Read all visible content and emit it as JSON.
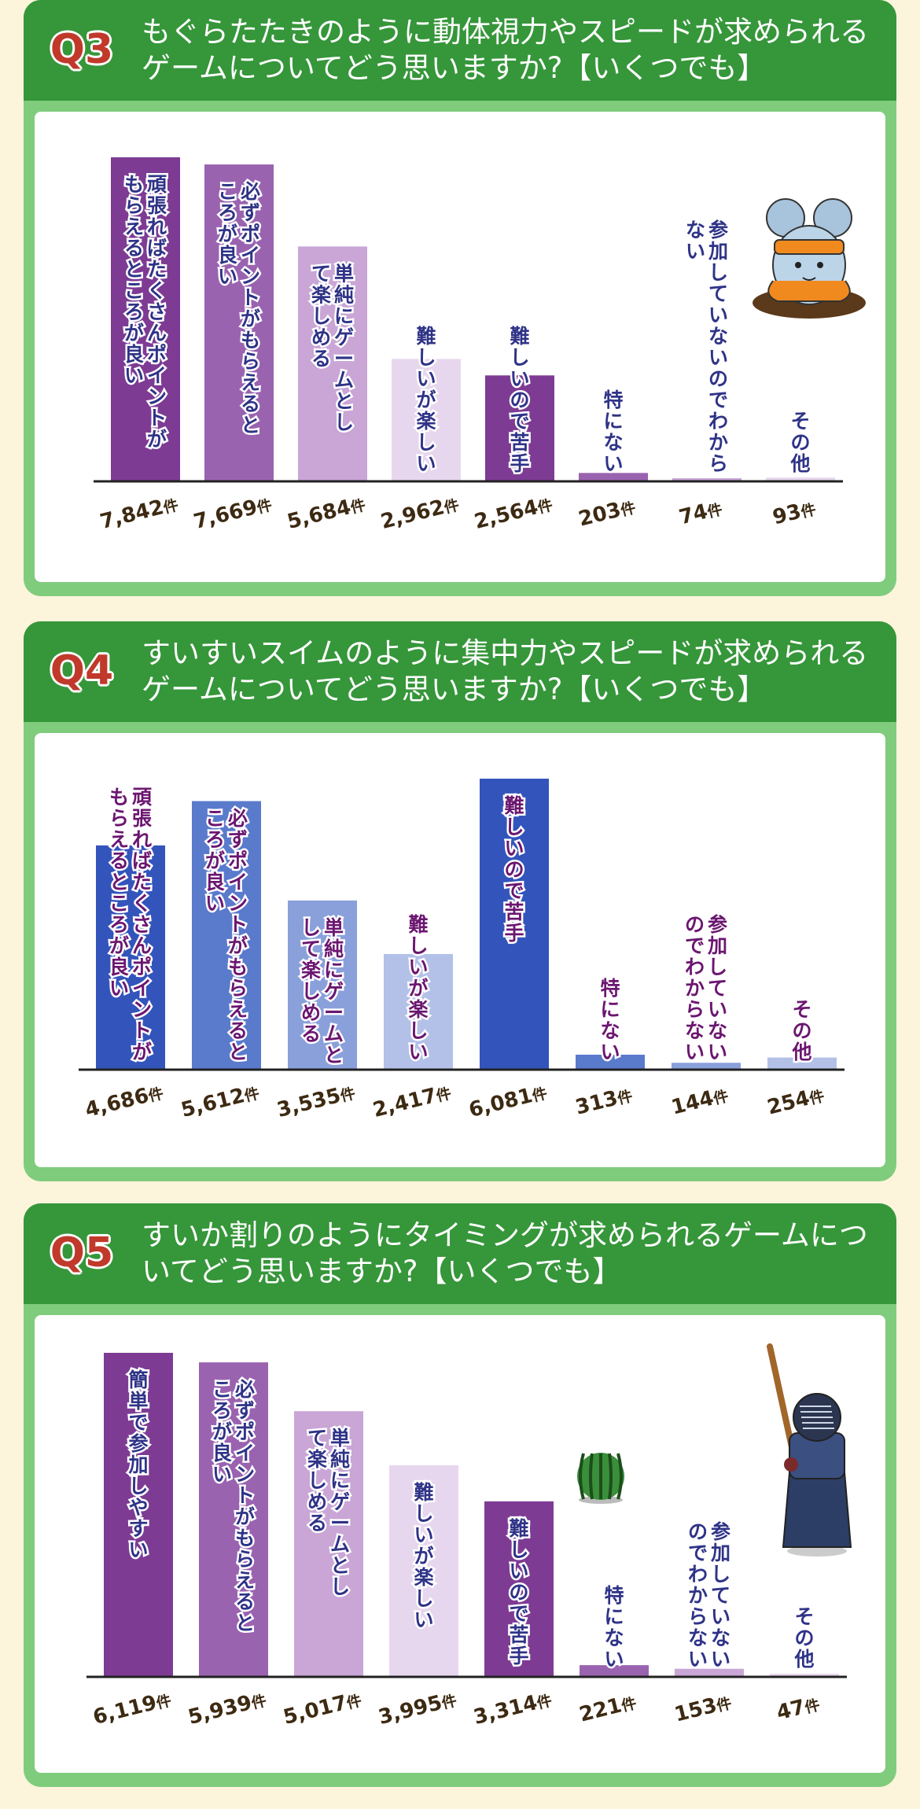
{
  "unit_suffix": "件",
  "chart_data": [
    {
      "type": "bar",
      "question_no": "Q3",
      "question": "もぐらたたきのように動体視力やスピードが求められるゲームについてどう思いますか?【いくつでも】",
      "categories": [
        "頑張ればたくさんポイントがもらえるところが良い",
        "必ずポイントがもらえるところが良い",
        "単純にゲームとして楽しめる",
        "難しいが楽しい",
        "難しいので苦手",
        "特にない",
        "参加していないのでわからない",
        "その他"
      ],
      "values": [
        7842,
        7669,
        5684,
        2962,
        2564,
        203,
        74,
        93
      ],
      "value_labels": [
        "7,842",
        "7,669",
        "5,684",
        "2,962",
        "2,564",
        "203",
        "74",
        "93"
      ],
      "bar_colors": [
        "#7e3b94",
        "#9a63b0",
        "#c9a6d6",
        "#e7d7ee",
        "#7e3b94",
        "#9a63b0",
        "#c9a6d6",
        "#e7d7ee"
      ],
      "label_color": "#2f3387",
      "label_lines": [
        [
          "頑張れば",
          "たくさん",
          "ポイントが"
        ],
        [
          "もらえる",
          "ところが良い"
        ]
      ],
      "illustration": "mole-mouse-icon"
    },
    {
      "type": "bar",
      "question_no": "Q4",
      "question": "すいすいスイムのように集中力やスピードが求められるゲームについてどう思いますか?【いくつでも】",
      "categories": [
        "頑張ればたくさんポイントがもらえるところが良い",
        "必ずポイントがもらえるところが良い",
        "単純にゲームとして楽しめる",
        "難しいが楽しい",
        "難しいので苦手",
        "特にない",
        "参加していないのでわからない",
        "その他"
      ],
      "values": [
        4686,
        5612,
        3535,
        2417,
        6081,
        313,
        144,
        254
      ],
      "value_labels": [
        "4,686",
        "5,612",
        "3,535",
        "2,417",
        "6,081",
        "313",
        "144",
        "254"
      ],
      "bar_colors": [
        "#3355bb",
        "#5a7acc",
        "#8aa0db",
        "#b3c1e8",
        "#3355bb",
        "#5a7acc",
        "#8aa0db",
        "#b3c1e8"
      ],
      "label_color": "#6b1670"
    },
    {
      "type": "bar",
      "question_no": "Q5",
      "question": "すいか割りのようにタイミングが求められるゲームについてどう思いますか?【いくつでも】",
      "categories": [
        "簡単で参加しやすい",
        "必ずポイントがもらえるところが良い",
        "単純にゲームとして楽しめる",
        "難しいが楽しい",
        "難しいので苦手",
        "特にない",
        "参加していないのでわからない",
        "その他"
      ],
      "values": [
        6119,
        5939,
        5017,
        3995,
        3314,
        221,
        153,
        47
      ],
      "value_labels": [
        "6,119",
        "5,939",
        "5,017",
        "3,995",
        "3,314",
        "221",
        "153",
        "47"
      ],
      "bar_colors": [
        "#7e3b94",
        "#9a63b0",
        "#c9a6d6",
        "#e7d7ee",
        "#7e3b94",
        "#9a63b0",
        "#c9a6d6",
        "#e7d7ee"
      ],
      "label_color": "#2f3387",
      "illustrations": [
        "watermelon-icon",
        "kendo-player-icon"
      ]
    }
  ]
}
